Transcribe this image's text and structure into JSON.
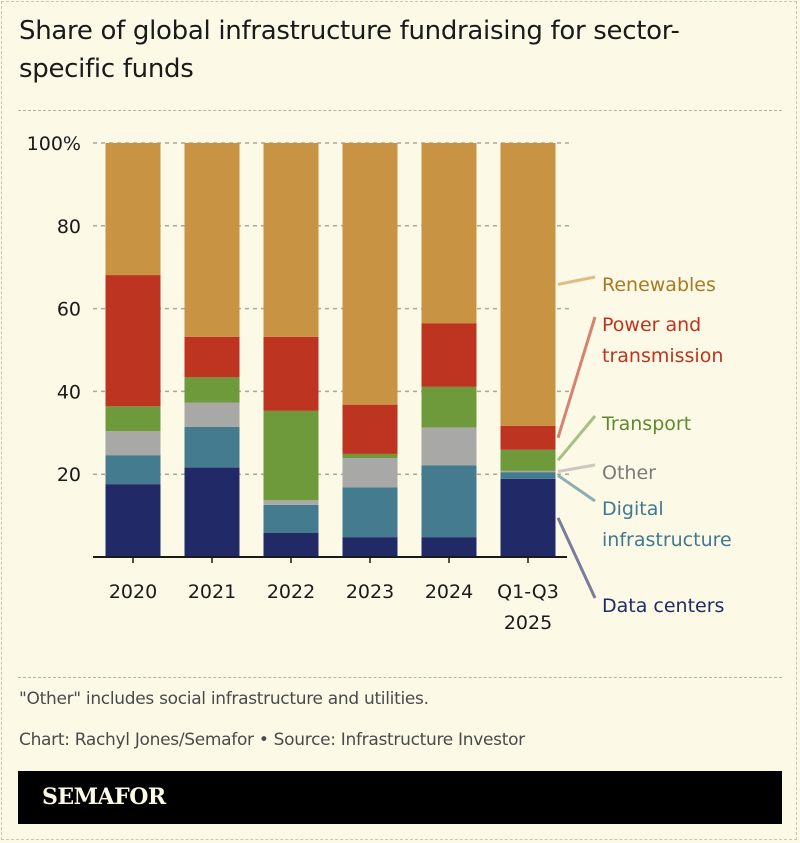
{
  "title": "Share of global infrastructure fundraising for sector-specific funds",
  "footnote": "\"Other\" includes social infrastructure and utilities.",
  "credit": "Chart: Rachyl Jones/Semafor • Source: Infrastructure Investor",
  "brand": "SEMAFOR",
  "chart_data": {
    "type": "bar",
    "stacked": true,
    "title": "Share of global infrastructure fundraising for sector-specific funds",
    "categories": [
      [
        "2020"
      ],
      [
        "2021"
      ],
      [
        "2022"
      ],
      [
        "2023"
      ],
      [
        "2024"
      ],
      [
        "Q1-Q3",
        "2025"
      ]
    ],
    "ylim": [
      0,
      100
    ],
    "yticks": [
      0,
      20,
      40,
      60,
      80,
      100
    ],
    "ytick_labels": [
      "",
      "20",
      "40",
      "60",
      "80",
      "100%"
    ],
    "grid": true,
    "legend_placement": "right (direct labels)",
    "series": [
      {
        "name": "Data centers",
        "color": "#212a66",
        "label_color": "#212a66",
        "values": [
          17.6,
          21.6,
          5.8,
          4.8,
          4.8,
          18.9
        ]
      },
      {
        "name": "Digital infrastructure",
        "color": "#457b8e",
        "label_color": "#3f7a90",
        "values": [
          7.0,
          9.8,
          6.8,
          12.0,
          17.3,
          1.6
        ]
      },
      {
        "name": "Other",
        "color": "#a8a8a6",
        "label_color": "#7a7a78",
        "values": [
          5.8,
          5.9,
          1.1,
          7.1,
          9.2,
          0.3
        ]
      },
      {
        "name": "Transport",
        "color": "#6f9a3b",
        "label_color": "#5e8a2d",
        "values": [
          6.0,
          6.1,
          21.6,
          1.0,
          9.8,
          5.1
        ]
      },
      {
        "name": "Power and transmission",
        "color": "#bd3421",
        "label_color": "#c0321e",
        "values": [
          31.7,
          9.8,
          17.9,
          11.9,
          15.3,
          5.8
        ]
      },
      {
        "name": "Renewables",
        "color": "#c89444",
        "label_color": "#a77a22",
        "values": [
          31.9,
          46.8,
          46.8,
          63.2,
          43.6,
          68.3
        ]
      }
    ]
  }
}
